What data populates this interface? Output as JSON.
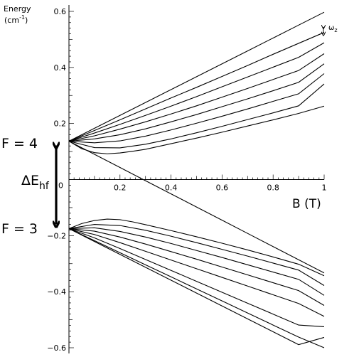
{
  "chart_data": {
    "type": "line",
    "ylabel_line1": "Energy",
    "ylabel_line2": "(cm",
    "ylabel_sup": "-1",
    "ylabel_close": ")",
    "xlabel": "B (T)",
    "xlim": [
      0,
      1
    ],
    "ylim": [
      -0.62,
      0.62
    ],
    "xticks": [
      "0.2",
      "0.4",
      "0.6",
      "0.8",
      "1"
    ],
    "xtick_values": [
      0.2,
      0.4,
      0.6,
      0.8,
      1.0
    ],
    "origin_label": "0",
    "yticks": [
      "0.6",
      "0.4",
      "0.2",
      "−0.2",
      "−0.4",
      "−0.6"
    ],
    "ytick_values": [
      0.6,
      0.4,
      0.2,
      -0.2,
      -0.4,
      -0.6
    ],
    "grid": false,
    "annotations": {
      "f4": "F = 4",
      "f3": "F = 3",
      "delta_e": "ΔE",
      "delta_e_sub": "hf",
      "omega": "ω",
      "omega_sub": "z"
    },
    "series": [
      {
        "x": [
          0,
          0.1,
          0.2,
          0.3,
          0.4,
          0.5,
          0.6,
          0.7,
          0.8,
          0.9,
          1.0
        ],
        "y": [
          0.137,
          0.183,
          0.229,
          0.275,
          0.321,
          0.367,
          0.413,
          0.459,
          0.505,
          0.551,
          0.597
        ]
      },
      {
        "x": [
          0,
          0.1,
          0.2,
          0.3,
          0.4,
          0.5,
          0.6,
          0.7,
          0.8,
          0.9,
          1.0
        ],
        "y": [
          0.137,
          0.175,
          0.213,
          0.252,
          0.291,
          0.329,
          0.368,
          0.407,
          0.447,
          0.486,
          0.525
        ]
      },
      {
        "x": [
          0,
          0.1,
          0.2,
          0.3,
          0.4,
          0.5,
          0.6,
          0.7,
          0.8,
          0.9,
          1.0
        ],
        "y": [
          0.137,
          0.166,
          0.197,
          0.229,
          0.262,
          0.296,
          0.331,
          0.366,
          0.401,
          0.436,
          0.488
        ]
      },
      {
        "x": [
          0,
          0.1,
          0.2,
          0.3,
          0.4,
          0.5,
          0.6,
          0.7,
          0.8,
          0.9,
          1.0
        ],
        "y": [
          0.137,
          0.156,
          0.18,
          0.206,
          0.234,
          0.263,
          0.294,
          0.325,
          0.357,
          0.389,
          0.449
        ]
      },
      {
        "x": [
          0,
          0.1,
          0.2,
          0.3,
          0.4,
          0.5,
          0.6,
          0.7,
          0.8,
          0.9,
          1.0
        ],
        "y": [
          0.137,
          0.145,
          0.16,
          0.181,
          0.206,
          0.232,
          0.26,
          0.288,
          0.317,
          0.347,
          0.413
        ]
      },
      {
        "x": [
          0,
          0.1,
          0.2,
          0.3,
          0.4,
          0.5,
          0.6,
          0.7,
          0.8,
          0.9,
          1.0
        ],
        "y": [
          0.137,
          0.131,
          0.138,
          0.155,
          0.177,
          0.201,
          0.226,
          0.252,
          0.279,
          0.306,
          0.378
        ]
      },
      {
        "x": [
          0,
          0.1,
          0.2,
          0.3,
          0.4,
          0.5,
          0.6,
          0.7,
          0.8,
          0.9,
          1.0
        ],
        "y": [
          0.137,
          0.114,
          0.113,
          0.126,
          0.145,
          0.167,
          0.19,
          0.214,
          0.238,
          0.263,
          0.341
        ]
      },
      {
        "x": [
          0,
          0.05,
          0.1,
          0.15,
          0.2,
          0.25,
          0.3,
          0.4,
          0.5,
          0.6,
          0.7,
          0.8,
          0.9,
          1.0
        ],
        "y": [
          0.137,
          0.11,
          0.096,
          0.092,
          0.095,
          0.101,
          0.108,
          0.128,
          0.148,
          0.169,
          0.191,
          0.213,
          0.236,
          0.262
        ]
      },
      {
        "x": [
          0,
          0.1,
          0.2,
          0.3,
          0.4,
          0.5,
          0.6,
          0.7,
          0.8,
          0.9,
          1.0
        ],
        "y": [
          0.137,
          0.09,
          0.043,
          -0.004,
          -0.051,
          -0.098,
          -0.145,
          -0.192,
          -0.239,
          -0.286,
          -0.333
        ]
      },
      {
        "x": [
          0,
          0.05,
          0.1,
          0.15,
          0.2,
          0.25,
          0.3,
          0.4,
          0.5,
          0.6,
          0.7,
          0.8,
          0.9,
          1.0
        ],
        "y": [
          -0.175,
          -0.157,
          -0.146,
          -0.141,
          -0.143,
          -0.151,
          -0.161,
          -0.182,
          -0.204,
          -0.227,
          -0.251,
          -0.276,
          -0.302,
          -0.343
        ]
      },
      {
        "x": [
          0,
          0.1,
          0.2,
          0.3,
          0.4,
          0.5,
          0.6,
          0.7,
          0.8,
          0.9,
          1.0
        ],
        "y": [
          -0.175,
          -0.16,
          -0.164,
          -0.181,
          -0.202,
          -0.225,
          -0.249,
          -0.273,
          -0.298,
          -0.323,
          -0.378
        ]
      },
      {
        "x": [
          0,
          0.1,
          0.2,
          0.3,
          0.4,
          0.5,
          0.6,
          0.7,
          0.8,
          0.9,
          1.0
        ],
        "y": [
          -0.175,
          -0.172,
          -0.185,
          -0.205,
          -0.228,
          -0.253,
          -0.278,
          -0.304,
          -0.33,
          -0.356,
          -0.413
        ]
      },
      {
        "x": [
          0,
          0.1,
          0.2,
          0.3,
          0.4,
          0.5,
          0.6,
          0.7,
          0.8,
          0.9,
          1.0
        ],
        "y": [
          -0.175,
          -0.184,
          -0.205,
          -0.23,
          -0.257,
          -0.284,
          -0.312,
          -0.34,
          -0.368,
          -0.396,
          -0.449
        ]
      },
      {
        "x": [
          0,
          0.1,
          0.2,
          0.3,
          0.4,
          0.5,
          0.6,
          0.7,
          0.8,
          0.9,
          1.0
        ],
        "y": [
          -0.175,
          -0.196,
          -0.225,
          -0.256,
          -0.287,
          -0.318,
          -0.349,
          -0.38,
          -0.411,
          -0.442,
          -0.488
        ]
      },
      {
        "x": [
          0,
          0.1,
          0.2,
          0.3,
          0.4,
          0.5,
          0.6,
          0.7,
          0.8,
          0.9,
          1.0
        ],
        "y": [
          -0.175,
          -0.208,
          -0.246,
          -0.285,
          -0.324,
          -0.363,
          -0.402,
          -0.441,
          -0.48,
          -0.519,
          -0.525
        ]
      },
      {
        "x": [
          0,
          0.1,
          0.2,
          0.3,
          0.4,
          0.5,
          0.6,
          0.7,
          0.8,
          0.9,
          1.0
        ],
        "y": [
          -0.175,
          -0.221,
          -0.267,
          -0.313,
          -0.359,
          -0.405,
          -0.451,
          -0.497,
          -0.543,
          -0.589,
          -0.563
        ]
      },
      {
        "x": [
          0,
          0.1,
          0.2,
          0.3,
          0.4,
          0.5,
          0.6,
          0.7,
          0.8,
          0.9,
          1.0
        ],
        "y": [
          -0.175,
          -0.218,
          -0.261,
          -0.304,
          -0.347,
          -0.39,
          -0.433,
          -0.476,
          -0.519,
          -0.562,
          -0.6
        ]
      }
    ]
  }
}
